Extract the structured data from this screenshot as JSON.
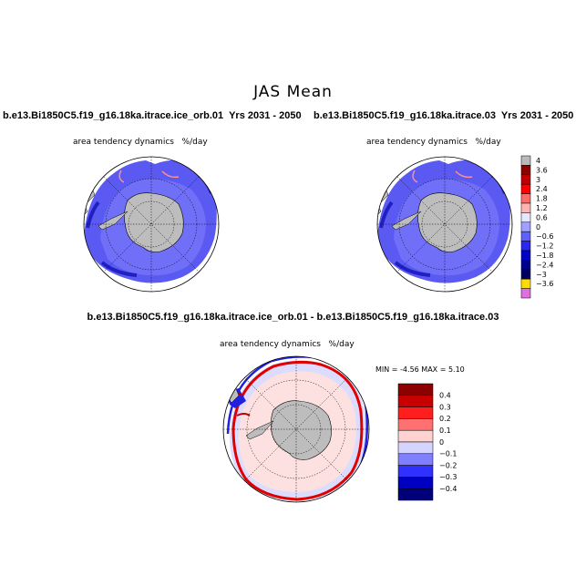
{
  "figure": {
    "title": "JAS Mean",
    "left_panel": {
      "case": "b.e13.Bi1850C5.f19_g16.18ka.itrace.ice_orb.01",
      "years": "Yrs 2031 - 2050",
      "variable": "area tendency dynamics",
      "units": "%/day"
    },
    "right_panel": {
      "case": "b.e13.Bi1850C5.f19_g16.18ka.itrace.03",
      "years": "Yrs 2031 - 2050",
      "variable": "area tendency dynamics",
      "units": "%/day"
    },
    "diff_panel": {
      "title": "b.e13.Bi1850C5.f19_g16.18ka.itrace.ice_orb.01 - b.e13.Bi1850C5.f19_g16.18ka.itrace.03",
      "variable": "area tendency dynamics",
      "units": "%/day",
      "min_label": "MIN =",
      "min_value": "-4.56",
      "max_label": "MAX =",
      "max_value": "5.10"
    }
  },
  "colorbar_top": {
    "labels": [
      "4",
      "3.6",
      "3",
      "2.4",
      "1.8",
      "1.2",
      "0.6",
      "0",
      "-0.6",
      "-1.2",
      "-1.8",
      "-2.4",
      "-3",
      "-3.6"
    ],
    "colors": [
      "#b9b9b9",
      "#8c0000",
      "#c00000",
      "#ff0000",
      "#ff6a6a",
      "#ffb4b4",
      "#e6e6ff",
      "#a0a0ff",
      "#6060ff",
      "#2828f0",
      "#0000c8",
      "#000090",
      "#000060",
      "#ffdc00",
      "#e070e0"
    ]
  },
  "colorbar_diff": {
    "labels": [
      "0.4",
      "0.3",
      "0.2",
      "0.1",
      "0",
      "-0.1",
      "-0.2",
      "-0.3",
      "-0.4"
    ],
    "colors": [
      "#8c0000",
      "#c80000",
      "#ff1e1e",
      "#ff7070",
      "#ffd2d2",
      "#d4d4ff",
      "#8080ff",
      "#3030ff",
      "#0000c0",
      "#00007a"
    ]
  },
  "colors": {
    "land": "#bdbdbd",
    "ocean": "#ffffff",
    "ice_dynamics": "#6a6af5",
    "ice_strong": "#2b2bd0",
    "diff_background": "#dcdcff"
  }
}
